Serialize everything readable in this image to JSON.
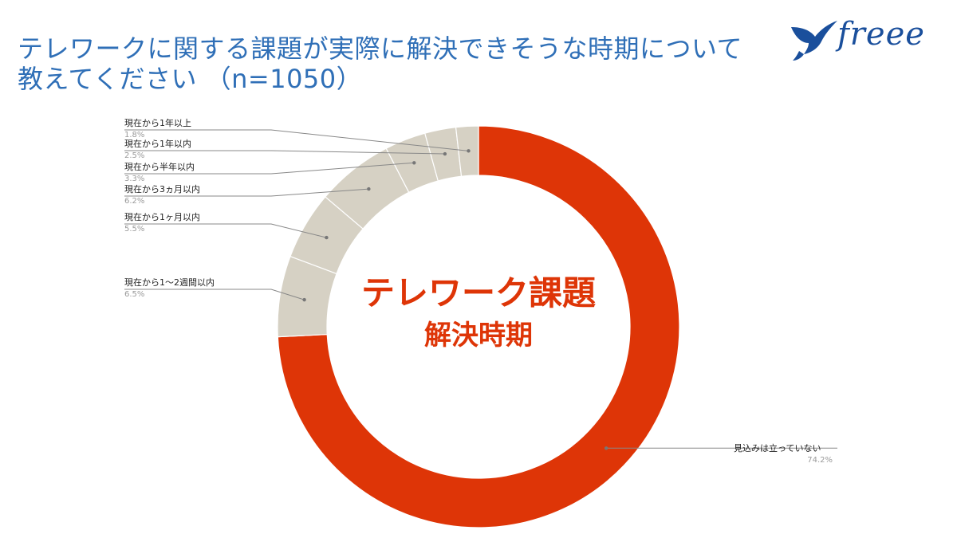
{
  "title": {
    "line1": "テレワークに関する課題が実際に解決できそうな時期について",
    "line2": "教えてください （n=1050）"
  },
  "logo": {
    "text": "freee",
    "icon": "swallow-bird-icon",
    "color": "#1a4f9c"
  },
  "center_label": {
    "line1": "テレワーク課題",
    "line2": "解決時期"
  },
  "colors": {
    "primary_slice": "#de3507",
    "other_slices": "#d6d1c4",
    "title": "#2f6fb7",
    "center_text": "#de3507",
    "leader_line": "#888888"
  },
  "chart_data": {
    "type": "pie",
    "donut": true,
    "title": "",
    "slices": [
      {
        "label": "見込みは立っていない",
        "value": 74.2,
        "value_label": "74.2%"
      },
      {
        "label": "現在から1〜2週間以内",
        "value": 6.5,
        "value_label": "6.5%"
      },
      {
        "label": "現在から1ヶ月以内",
        "value": 5.5,
        "value_label": "5.5%"
      },
      {
        "label": "現在から3ヵ月以内",
        "value": 6.2,
        "value_label": "6.2%"
      },
      {
        "label": "現在から半年以内",
        "value": 3.3,
        "value_label": "3.3%"
      },
      {
        "label": "現在から1年以内",
        "value": 2.5,
        "value_label": "2.5%"
      },
      {
        "label": "現在から1年以上",
        "value": 1.8,
        "value_label": "1.8%"
      }
    ]
  }
}
